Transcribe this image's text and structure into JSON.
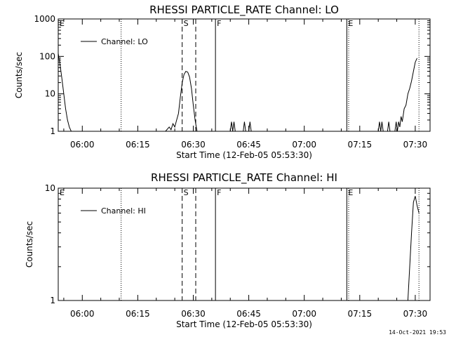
{
  "timestamp": "14-Oct-2021 19:53",
  "chart_data": [
    {
      "type": "line",
      "title": "RHESSI PARTICLE_RATE Channel: LO",
      "xlabel": "Start Time (12-Feb-05 05:53:30)",
      "ylabel": "Counts/sec",
      "y_scale": "log",
      "xlim": [
        "05:53:30",
        "07:34:00"
      ],
      "ylim": [
        1,
        1000
      ],
      "x_ticks": [
        "06:00",
        "06:15",
        "06:30",
        "06:45",
        "07:00",
        "07:15",
        "07:30"
      ],
      "y_ticks": [
        "1",
        "10",
        "100",
        "1000"
      ],
      "legend": {
        "position": "top-left",
        "entries": [
          "Channel: LO"
        ]
      },
      "series": [
        {
          "name": "Channel: LO",
          "points": [
            [
              "05:53:30",
              120
            ],
            [
              "05:54:00",
              60
            ],
            [
              "05:54:30",
              25
            ],
            [
              "05:55:00",
              10
            ],
            [
              "05:55:30",
              4
            ],
            [
              "05:56:00",
              2
            ],
            [
              "05:56:30",
              1.3
            ],
            [
              "05:57:00",
              1
            ],
            [
              "06:22:30",
              1
            ],
            [
              "06:23:30",
              1.3
            ],
            [
              "06:24:00",
              1.1
            ],
            [
              "06:24:30",
              1.6
            ],
            [
              "06:25:00",
              1.3
            ],
            [
              "06:25:30",
              2
            ],
            [
              "06:26:00",
              3
            ],
            [
              "06:26:30",
              8
            ],
            [
              "06:27:00",
              20
            ],
            [
              "06:27:30",
              33
            ],
            [
              "06:28:00",
              40
            ],
            [
              "06:28:30",
              38
            ],
            [
              "06:29:00",
              28
            ],
            [
              "06:29:30",
              14
            ],
            [
              "06:30:00",
              5
            ],
            [
              "06:30:30",
              2
            ],
            [
              "06:31:00",
              1
            ],
            [
              "06:40:00",
              1
            ],
            [
              "06:40:20",
              1.8
            ],
            [
              "06:40:40",
              1
            ],
            [
              "06:41:00",
              1.8
            ],
            [
              "06:41:20",
              1
            ],
            [
              "06:43:30",
              1
            ],
            [
              "06:43:50",
              1.8
            ],
            [
              "06:44:10",
              1
            ],
            [
              "06:45:00",
              1
            ],
            [
              "06:45:20",
              1.8
            ],
            [
              "06:45:40",
              1
            ],
            [
              "07:20:00",
              1
            ],
            [
              "07:20:20",
              1.8
            ],
            [
              "07:20:40",
              1
            ],
            [
              "07:21:00",
              1.8
            ],
            [
              "07:21:20",
              1
            ],
            [
              "07:22:30",
              1
            ],
            [
              "07:22:50",
              1.8
            ],
            [
              "07:23:10",
              1
            ],
            [
              "07:24:30",
              1
            ],
            [
              "07:24:50",
              1.8
            ],
            [
              "07:25:10",
              1
            ],
            [
              "07:25:30",
              1.8
            ],
            [
              "07:25:50",
              1.3
            ],
            [
              "07:26:10",
              2.5
            ],
            [
              "07:26:30",
              1.8
            ],
            [
              "07:27:00",
              4
            ],
            [
              "07:27:30",
              5
            ],
            [
              "07:28:00",
              10
            ],
            [
              "07:28:30",
              14
            ],
            [
              "07:29:00",
              22
            ],
            [
              "07:29:30",
              40
            ],
            [
              "07:30:00",
              70
            ],
            [
              "07:30:30",
              90
            ]
          ]
        }
      ],
      "events": [
        {
          "label": "E",
          "time": "05:53:30",
          "style": "none"
        },
        {
          "label": "",
          "time": "06:10:30",
          "style": "dotted"
        },
        {
          "label": "S",
          "time": "06:27:00",
          "style": "dashed"
        },
        {
          "label": "",
          "time": "06:30:40",
          "style": "dashed"
        },
        {
          "label": "F",
          "time": "06:36:00",
          "style": "solid"
        },
        {
          "label": "E",
          "time": "07:11:30",
          "style": "solid"
        },
        {
          "label": "",
          "time": "07:12:00",
          "style": "dotted"
        },
        {
          "label": "",
          "time": "07:31:00",
          "style": "dotted"
        }
      ]
    },
    {
      "type": "line",
      "title": "RHESSI PARTICLE_RATE Channel: HI",
      "xlabel": "Start Time (12-Feb-05 05:53:30)",
      "ylabel": "Counts/sec",
      "y_scale": "log",
      "xlim": [
        "05:53:30",
        "07:34:00"
      ],
      "ylim": [
        1,
        10
      ],
      "x_ticks": [
        "06:00",
        "06:15",
        "06:30",
        "06:45",
        "07:00",
        "07:15",
        "07:30"
      ],
      "y_ticks": [
        "1",
        "10"
      ],
      "legend": {
        "position": "top-left",
        "entries": [
          "Channel: HI"
        ]
      },
      "series": [
        {
          "name": "Channel: HI",
          "points": [
            [
              "07:28:00",
              1
            ],
            [
              "07:28:30",
              2
            ],
            [
              "07:29:00",
              4
            ],
            [
              "07:29:30",
              7.5
            ],
            [
              "07:30:00",
              8.5
            ],
            [
              "07:30:30",
              7
            ],
            [
              "07:31:00",
              6
            ]
          ]
        }
      ],
      "events": [
        {
          "label": "E",
          "time": "05:53:30",
          "style": "none"
        },
        {
          "label": "",
          "time": "06:10:30",
          "style": "dotted"
        },
        {
          "label": "S",
          "time": "06:27:00",
          "style": "dashed"
        },
        {
          "label": "",
          "time": "06:30:40",
          "style": "dashed"
        },
        {
          "label": "F",
          "time": "06:36:00",
          "style": "solid"
        },
        {
          "label": "E",
          "time": "07:11:30",
          "style": "solid"
        },
        {
          "label": "",
          "time": "07:12:00",
          "style": "dotted"
        },
        {
          "label": "",
          "time": "07:31:00",
          "style": "dotted"
        }
      ]
    }
  ]
}
